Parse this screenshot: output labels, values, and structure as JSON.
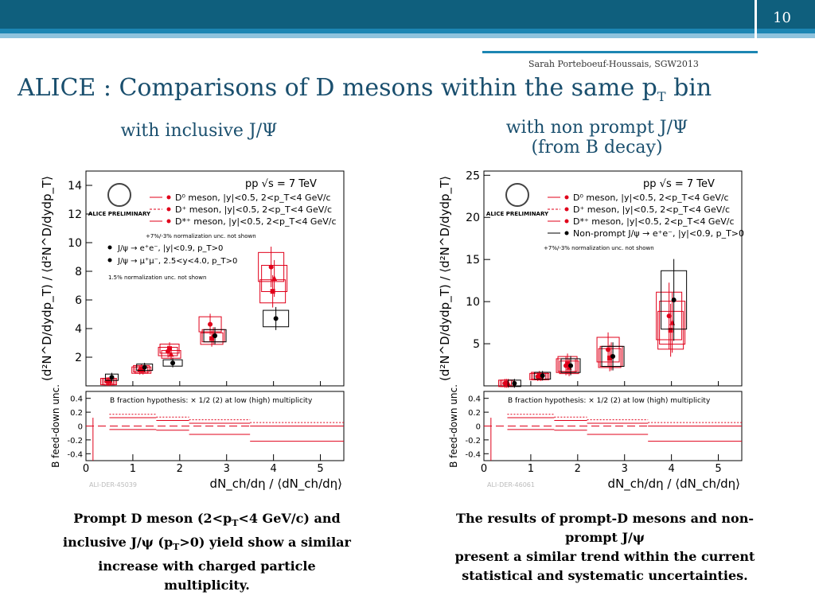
{
  "slide": {
    "number": "10",
    "author": "Sarah Porteboeuf-Houssais, SGW2013",
    "title_main": "ALICE : Comparisons of D mesons within the same p",
    "title_sub": "T",
    "title_end": " bin",
    "left_heading": "with inclusive J/Ψ",
    "right_heading_1": "with non prompt J/Ψ",
    "right_heading_2": "(from B decay)",
    "left_caption": {
      "l1a": "Prompt D meson (2<p",
      "l1s": "T",
      "l1b": "<4 GeV/c) and",
      "l2a": "inclusive J/ψ (p",
      "l2s": "T",
      "l2b": ">0) yield  show a similar",
      "l3": "increase with charged particle",
      "l4": "multiplicity."
    },
    "right_caption": {
      "l1": "The results of prompt-D mesons and non-",
      "l2": "prompt J/ψ",
      "l3": "present a similar trend within the current",
      "l4": "statistical and systematic uncertainties."
    }
  },
  "colors": {
    "band_dark": "#0f5f7d",
    "band_mid": "#1c86b3",
    "band_light": "#8ec3dd",
    "title": "#1a4f6e",
    "red": "#e0001a"
  },
  "chart_data": [
    {
      "type": "scatter",
      "plot_title": "pp √s = 7 TeV",
      "logo": "ALICE PRELIMINARY",
      "ylim": [
        0,
        15
      ],
      "xlim": [
        0,
        5.5
      ],
      "yticks": [
        2,
        4,
        6,
        8,
        10,
        12,
        14
      ],
      "xticks": [
        0,
        1,
        2,
        3,
        4,
        5
      ],
      "ylabel": "(d²N^D/dydp_T) / ⟨d²N^D/dydp_T⟩",
      "xlabel": "dN_ch/dη / ⟨dN_ch/dη⟩",
      "legend": [
        "D⁰ meson, |y|<0.5, 2<p_T<4 GeV/c",
        "D⁺ meson, |y|<0.5, 2<p_T<4 GeV/c",
        "D*⁺ meson, |y|<0.5, 2<p_T<4 GeV/c"
      ],
      "note1": "+7%/-3% normalization unc. not shown",
      "legend2": [
        "J/ψ → e⁺e⁻, |y|<0.9, p_T>0",
        "J/ψ → μ⁺μ⁻, 2.5<y<4.0, p_T>0"
      ],
      "note2": "1.5% normalization unc. not shown",
      "watermark": "ALI-DER-45039",
      "series": [
        {
          "name": "D⁰",
          "x": [
            0.5,
            1.2,
            1.8,
            2.7,
            4.0
          ],
          "y": [
            0.3,
            1.1,
            2.4,
            4.3,
            8.3
          ]
        },
        {
          "name": "D⁺",
          "x": [
            0.5,
            1.2,
            1.8,
            2.7,
            4.0
          ],
          "y": [
            0.3,
            1.2,
            2.6,
            3.3,
            6.6
          ]
        },
        {
          "name": "D*⁺",
          "x": [
            0.5,
            1.2,
            1.8,
            2.7,
            4.0
          ],
          "y": [
            0.3,
            1.1,
            2.2,
            3.5,
            7.5
          ]
        },
        {
          "name": "J/ψ",
          "x": [
            0.5,
            1.2,
            1.8,
            2.7,
            4.0
          ],
          "y": [
            0.6,
            1.3,
            1.6,
            3.5,
            4.7
          ]
        }
      ],
      "sub_panel": {
        "ylabel": "B feed-down unc.",
        "ylim": [
          -0.5,
          0.5
        ],
        "yticks": [
          0.4,
          0.2,
          0,
          -0.2,
          -0.4
        ],
        "text": "B fraction hypothesis: × 1/2 (2) at low (high) multiplicity"
      }
    },
    {
      "type": "scatter",
      "plot_title": "pp √s = 7 TeV",
      "logo": "ALICE PRELIMINARY",
      "ylim": [
        0,
        25.5
      ],
      "xlim": [
        0,
        5.5
      ],
      "yticks": [
        5,
        10,
        15,
        20,
        25
      ],
      "xticks": [
        0,
        1,
        2,
        3,
        4,
        5
      ],
      "ylabel": "(d²N^D/dydp_T) / ⟨d²N^D/dydp_T⟩",
      "xlabel": "dN_ch/dη / ⟨dN_ch/dη⟩",
      "legend": [
        "D⁰ meson, |y|<0.5, 2<p_T<4 GeV/c",
        "D⁺ meson, |y|<0.5, 2<p_T<4 GeV/c",
        "D*⁺ meson, |y|<0.5, 2<p_T<4 GeV/c",
        "Non-prompt J/ψ → e⁺e⁻, |y|<0.9, p_T>0"
      ],
      "note1": "+7%/-3% normalization unc. not shown",
      "watermark": "ALI-DER-46061",
      "series": [
        {
          "name": "D⁰",
          "x": [
            0.5,
            1.2,
            1.8,
            2.7,
            4.0
          ],
          "y": [
            0.3,
            1.1,
            2.4,
            4.3,
            8.3
          ]
        },
        {
          "name": "D⁺",
          "x": [
            0.5,
            1.2,
            1.8,
            2.7,
            4.0
          ],
          "y": [
            0.3,
            1.2,
            2.6,
            3.3,
            6.6
          ]
        },
        {
          "name": "D*⁺",
          "x": [
            0.5,
            1.2,
            1.8,
            2.7,
            4.0
          ],
          "y": [
            0.3,
            1.1,
            2.2,
            3.5,
            7.5
          ]
        },
        {
          "name": "Non-prompt J/ψ",
          "x": [
            0.6,
            1.2,
            1.8,
            2.7,
            4.0
          ],
          "y": [
            0.3,
            1.2,
            2.4,
            3.5,
            10.2
          ]
        }
      ],
      "sub_panel": {
        "ylabel": "B feed-down unc.",
        "ylim": [
          -0.5,
          0.5
        ],
        "yticks": [
          0.4,
          0.2,
          0,
          -0.2,
          -0.4
        ],
        "text": "B fraction hypothesis: × 1/2 (2) at low (high) multiplicity"
      }
    }
  ]
}
